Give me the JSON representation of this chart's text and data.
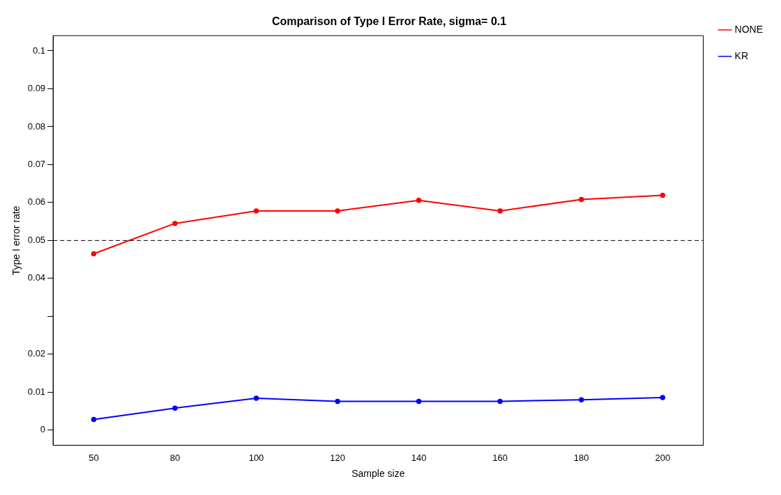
{
  "chart_data": {
    "type": "line",
    "title": "Comparison of Type I Error Rate, sigma= 0.1",
    "xlabel": "Sample size",
    "ylabel": "Type I error rate",
    "categories": [
      "50",
      "80",
      "100",
      "120",
      "140",
      "160",
      "180",
      "200"
    ],
    "series": [
      {
        "name": "NONE",
        "color": "#ff0000",
        "values": [
          0.0465,
          0.0545,
          0.0578,
          0.0578,
          0.0606,
          0.0578,
          0.0608,
          0.0619
        ]
      },
      {
        "name": "KR",
        "color": "#0000ff",
        "values": [
          0.0028,
          0.0058,
          0.0084,
          0.0076,
          0.0076,
          0.0076,
          0.008,
          0.0086
        ]
      }
    ],
    "ylim": [
      -0.004,
      0.104
    ],
    "yticks": [
      0,
      0.01,
      0.02,
      {
        "value": 0.03,
        "label": null
      },
      0.04,
      0.05,
      0.06,
      0.07,
      0.08,
      0.09,
      0.1
    ],
    "ref_lines": [
      {
        "axis": "y",
        "value": 0.05,
        "color": "#000000",
        "line_style": "dashed"
      }
    ],
    "legend": "top right",
    "grid": false,
    "marker": "circle",
    "line_style": "solid"
  }
}
